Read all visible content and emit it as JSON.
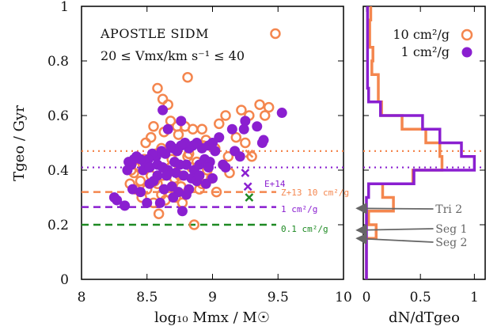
{
  "colors": {
    "orange": "#f4864e",
    "purple": "#8a1fd0",
    "green": "#1e8a23",
    "gray": "#666666"
  },
  "chart_data": [
    {
      "type": "scatter",
      "xlabel": "log₁₀ Mmx / M☉",
      "ylabel": "Tgeo / Gyr",
      "xlim": [
        8,
        10
      ],
      "ylim": [
        0,
        1
      ],
      "xticks": [
        "8",
        "8.5",
        "9",
        "9.5",
        "10"
      ],
      "yticks": [
        "0",
        "0.2",
        "0.4",
        "0.6",
        "0.8",
        "1"
      ],
      "annotation": {
        "line1": "APOSTLE SIDM",
        "line2": "20 ≤ Vmx/km s⁻¹ ≤ 40"
      },
      "series": [
        {
          "name": "10 cm²/g",
          "marker": "open-circle",
          "color": "orange",
          "x": [
            9.48,
            8.81,
            8.58,
            8.62,
            8.66,
            8.55,
            8.49,
            8.63,
            8.73,
            8.79,
            8.53,
            8.85,
            8.68,
            8.92,
            9.05,
            9.1,
            9.22,
            9.28,
            9.36,
            9.4,
            9.43,
            8.95,
            8.74,
            8.57,
            8.61,
            8.69,
            8.82,
            8.48,
            8.44,
            8.4,
            8.38,
            8.47,
            8.53,
            8.62,
            8.68,
            8.84,
            8.96,
            8.88,
            9.12,
            9.02,
            9.18,
            8.75,
            8.58,
            8.76,
            8.5,
            8.66,
            8.61,
            8.92,
            8.99,
            9.13,
            8.9,
            8.72,
            8.77,
            8.59,
            8.46,
            8.41,
            8.55,
            8.64,
            8.81,
            8.93,
            9.25,
            9.3,
            9.03,
            8.45,
            8.37,
            8.56,
            8.71,
            8.86
          ],
          "y": [
            0.9,
            0.74,
            0.7,
            0.66,
            0.64,
            0.56,
            0.5,
            0.54,
            0.56,
            0.56,
            0.52,
            0.55,
            0.58,
            0.55,
            0.57,
            0.6,
            0.62,
            0.6,
            0.64,
            0.6,
            0.63,
            0.51,
            0.53,
            0.46,
            0.48,
            0.44,
            0.46,
            0.44,
            0.41,
            0.39,
            0.4,
            0.42,
            0.38,
            0.38,
            0.41,
            0.41,
            0.4,
            0.43,
            0.45,
            0.48,
            0.52,
            0.38,
            0.35,
            0.34,
            0.33,
            0.32,
            0.31,
            0.35,
            0.37,
            0.39,
            0.33,
            0.3,
            0.28,
            0.24,
            0.3,
            0.33,
            0.28,
            0.29,
            0.45,
            0.49,
            0.5,
            0.45,
            0.32,
            0.36,
            0.35,
            0.36,
            0.37,
            0.2
          ]
        },
        {
          "name": "1 cm²/g",
          "marker": "filled-circle",
          "color": "purple",
          "x": [
            9.53,
            9.25,
            9.24,
            9.34,
            9.39,
            9.38,
            9.15,
            9.05,
            9.0,
            8.97,
            8.92,
            8.88,
            8.85,
            8.82,
            8.79,
            8.76,
            8.73,
            8.7,
            8.68,
            8.64,
            8.61,
            8.57,
            8.54,
            8.51,
            8.48,
            8.45,
            8.42,
            8.4,
            8.38,
            8.36,
            8.35,
            8.47,
            8.52,
            8.58,
            8.62,
            8.66,
            8.71,
            8.75,
            8.8,
            8.86,
            8.9,
            8.94,
            8.98,
            9.02,
            9.08,
            9.1,
            9.17,
            9.21,
            8.58,
            8.65,
            8.72,
            8.78,
            8.84,
            8.88,
            8.95,
            9.0,
            8.52,
            8.55,
            8.63,
            8.69,
            8.74,
            8.8,
            8.45,
            8.39,
            8.25,
            8.27,
            8.33,
            8.5,
            8.6,
            8.7,
            8.77,
            8.82,
            8.9,
            8.97,
            8.66,
            8.62,
            8.76
          ],
          "y": [
            0.61,
            0.58,
            0.55,
            0.56,
            0.51,
            0.5,
            0.55,
            0.52,
            0.5,
            0.49,
            0.48,
            0.5,
            0.49,
            0.48,
            0.5,
            0.49,
            0.47,
            0.48,
            0.49,
            0.46,
            0.47,
            0.45,
            0.46,
            0.44,
            0.43,
            0.44,
            0.45,
            0.44,
            0.42,
            0.43,
            0.4,
            0.4,
            0.41,
            0.42,
            0.41,
            0.4,
            0.43,
            0.42,
            0.42,
            0.4,
            0.42,
            0.44,
            0.43,
            0.47,
            0.42,
            0.41,
            0.47,
            0.45,
            0.38,
            0.38,
            0.39,
            0.38,
            0.37,
            0.36,
            0.35,
            0.37,
            0.35,
            0.36,
            0.33,
            0.34,
            0.32,
            0.31,
            0.32,
            0.33,
            0.3,
            0.29,
            0.27,
            0.28,
            0.28,
            0.3,
            0.25,
            0.33,
            0.38,
            0.41,
            0.55,
            0.62,
            0.58
          ]
        }
      ],
      "crosses": [
        {
          "x": 9.28,
          "y": 0.46,
          "color": "orange"
        },
        {
          "x": 9.25,
          "y": 0.39,
          "color": "purple"
        },
        {
          "x": 9.27,
          "y": 0.34,
          "color": "purple"
        },
        {
          "x": 9.28,
          "y": 0.3,
          "color": "green"
        }
      ],
      "dotted_lines": [
        {
          "y": 0.47,
          "color": "orange"
        },
        {
          "y": 0.41,
          "color": "purple"
        }
      ],
      "dashed_lines": [
        {
          "y": 0.32,
          "color": "orange",
          "label": "Z+13 10 cm²/g"
        },
        {
          "y": 0.265,
          "color": "purple",
          "label": "1 cm²/g"
        },
        {
          "y": 0.2,
          "color": "green",
          "label": "0.1 cm²/g"
        }
      ],
      "cross_label": "E+14"
    },
    {
      "type": "histogram",
      "xlabel": "dN/dTgeo",
      "xlim": [
        0,
        1.1
      ],
      "xticks": [
        "0",
        "0.5",
        "1"
      ],
      "legend": {
        "placement": "top-right",
        "entries": [
          "10 cm²/g",
          "1 cm²/g"
        ]
      },
      "bin_edges": [
        0,
        0.05,
        0.1,
        0.15,
        0.2,
        0.25,
        0.3,
        0.35,
        0.4,
        0.45,
        0.5,
        0.55,
        0.6,
        0.65,
        0.7,
        0.75,
        0.8,
        0.85,
        0.9,
        0.95,
        1.0
      ],
      "series": [
        {
          "name": "10 cm²/g",
          "color": "orange",
          "values": [
            0,
            0,
            0,
            0.09,
            0.02,
            0.25,
            0.15,
            0.43,
            0.7,
            0.68,
            0.55,
            0.33,
            0.14,
            0.11,
            0.11,
            0.05,
            0.06,
            0.03,
            0.03,
            0.04
          ]
        },
        {
          "name": "1 cm²/g",
          "color": "purple",
          "values": [
            0,
            0,
            0,
            0,
            0,
            0,
            0.02,
            0.44,
            1.0,
            0.88,
            0.68,
            0.52,
            0.13,
            0.02,
            0.01,
            0.01,
            0.01,
            0.01,
            0.01,
            0.01
          ]
        }
      ],
      "dotted_lines": [
        {
          "y": 0.47,
          "color": "orange"
        },
        {
          "y": 0.41,
          "color": "purple"
        }
      ],
      "arrows": [
        {
          "label": "Tri 2",
          "y": 0.26
        },
        {
          "label": "Seg 1",
          "y": 0.18
        },
        {
          "label": "Seg 2",
          "y": 0.15
        }
      ]
    }
  ]
}
